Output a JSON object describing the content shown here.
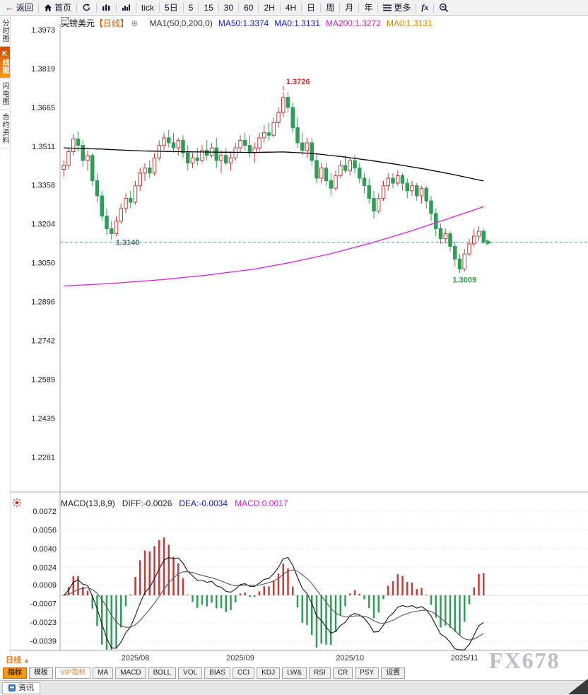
{
  "toolbar": {
    "items": [
      "返回",
      "首页",
      "tick",
      "5日",
      "5",
      "15",
      "30",
      "60",
      "2H",
      "4H",
      "日",
      "周",
      "月",
      "年",
      "更多",
      "fx"
    ]
  },
  "sidebar": {
    "items": [
      {
        "label": "分时图",
        "selected": false
      },
      {
        "label": "K线图",
        "selected": true
      },
      {
        "label": "闪电图",
        "selected": false
      },
      {
        "label": "合约资料",
        "selected": false
      }
    ]
  },
  "chart_header": {
    "symbol": "英镑美元",
    "period": "【日线】",
    "plus": "⊕",
    "ma_settings": "MA1(50,0,200,0)",
    "ma50": "MA50:1.3374",
    "ma0_a": "MA0:1.3131",
    "ma200": "MA200:1.3272",
    "ma0_b": "MA0:1.3131"
  },
  "macd_header": {
    "title": "MACD(13,8,9)",
    "diff": "DIFF:-0.0026",
    "dea": "DEA:-0.0034",
    "macd": "MACD:0.0017"
  },
  "bottom": {
    "timeframe_label": "日线",
    "timeframe_arrow": "▲",
    "tabs": [
      {
        "label": "指标",
        "variant": "selected"
      },
      {
        "label": "模板",
        "variant": "normal"
      },
      {
        "label": "VIP指标",
        "variant": "vip"
      },
      {
        "label": "MA",
        "variant": "normal"
      },
      {
        "label": "MACD",
        "variant": "normal"
      },
      {
        "label": "BOLL",
        "variant": "normal"
      },
      {
        "label": "VOL",
        "variant": "normal"
      },
      {
        "label": "BIAS",
        "variant": "normal"
      },
      {
        "label": "CCI",
        "variant": "normal"
      },
      {
        "label": "KDJ",
        "variant": "normal"
      },
      {
        "label": "LW&",
        "variant": "normal"
      },
      {
        "label": "RSI",
        "variant": "normal"
      },
      {
        "label": "CR",
        "variant": "normal"
      },
      {
        "label": "PSY",
        "variant": "normal"
      },
      {
        "label": "设置",
        "variant": "normal"
      }
    ]
  },
  "statusbar": {
    "news_label": "资讯"
  },
  "watermark": "FX678",
  "colors": {
    "up": "#c23c3c",
    "down": "#2e9e57",
    "ma50": "#000000",
    "ma200": "#e020e0",
    "current_price_line": "#2aa7a7",
    "annotation_high": "#d03030",
    "annotation_low_aug": "#4a6a7a",
    "annotation_low_nov": "#2ca04a"
  },
  "chart_data": {
    "type": "candlestick",
    "title": "英镑美元 GBP/USD 日线",
    "indicator": "MACD(13,8,9)",
    "y_axis_ticks": [
      1.3973,
      1.3819,
      1.3665,
      1.3511,
      1.3358,
      1.3204,
      1.305,
      1.2896,
      1.2742,
      1.2589,
      1.2435,
      1.2281
    ],
    "x_axis": [
      {
        "index": 15,
        "label": "2025/08"
      },
      {
        "index": 37,
        "label": "2025/09"
      },
      {
        "index": 60,
        "label": "2025/10"
      },
      {
        "index": 84,
        "label": "2025/11"
      }
    ],
    "last_price": 1.3131,
    "annotations": {
      "peak": {
        "index": 46,
        "price": 1.3726,
        "label": "1.3726"
      },
      "low_aug": {
        "index": 10,
        "price": 1.314,
        "label": "1.3140"
      },
      "low_nov": {
        "index": 83,
        "price": 1.3009,
        "label": "1.3009"
      }
    },
    "candles": [
      [
        1.342,
        1.3455,
        1.339,
        1.3435
      ],
      [
        1.3435,
        1.3505,
        1.342,
        1.349
      ],
      [
        1.349,
        1.356,
        1.3475,
        1.354
      ],
      [
        1.354,
        1.357,
        1.349,
        1.3515
      ],
      [
        1.3515,
        1.3535,
        1.343,
        1.3455
      ],
      [
        1.3455,
        1.3495,
        1.3415,
        1.3475
      ],
      [
        1.3475,
        1.3485,
        1.3355,
        1.3375
      ],
      [
        1.3375,
        1.3405,
        1.329,
        1.3315
      ],
      [
        1.3315,
        1.3335,
        1.3215,
        1.3235
      ],
      [
        1.3235,
        1.3265,
        1.316,
        1.3185
      ],
      [
        1.3185,
        1.3215,
        1.314,
        1.3165
      ],
      [
        1.3165,
        1.3235,
        1.3155,
        1.3215
      ],
      [
        1.3215,
        1.3285,
        1.3205,
        1.3265
      ],
      [
        1.3265,
        1.3325,
        1.3245,
        1.3305
      ],
      [
        1.3305,
        1.3335,
        1.3265,
        1.329
      ],
      [
        1.329,
        1.3375,
        1.328,
        1.3355
      ],
      [
        1.3355,
        1.3425,
        1.3335,
        1.3405
      ],
      [
        1.3405,
        1.3445,
        1.3375,
        1.3425
      ],
      [
        1.3425,
        1.3455,
        1.3385,
        1.3405
      ],
      [
        1.3405,
        1.3485,
        1.3395,
        1.3465
      ],
      [
        1.3465,
        1.3535,
        1.3455,
        1.3515
      ],
      [
        1.3515,
        1.3565,
        1.3495,
        1.3545
      ],
      [
        1.3545,
        1.3575,
        1.3505,
        1.3525
      ],
      [
        1.3525,
        1.3565,
        1.3485,
        1.3505
      ],
      [
        1.3505,
        1.3545,
        1.3475,
        1.3535
      ],
      [
        1.3535,
        1.3555,
        1.3465,
        1.3485
      ],
      [
        1.3485,
        1.3515,
        1.3415,
        1.3445
      ],
      [
        1.3445,
        1.3485,
        1.3425,
        1.3465
      ],
      [
        1.3465,
        1.3505,
        1.3435,
        1.3455
      ],
      [
        1.3455,
        1.3515,
        1.3445,
        1.3495
      ],
      [
        1.3495,
        1.3535,
        1.3455,
        1.3475
      ],
      [
        1.3475,
        1.3525,
        1.3465,
        1.3505
      ],
      [
        1.3505,
        1.3545,
        1.3425,
        1.3455
      ],
      [
        1.3455,
        1.3495,
        1.3405,
        1.3475
      ],
      [
        1.3475,
        1.3505,
        1.3435,
        1.3445
      ],
      [
        1.3445,
        1.3485,
        1.3415,
        1.3465
      ],
      [
        1.3465,
        1.3525,
        1.3455,
        1.3505
      ],
      [
        1.3505,
        1.3555,
        1.3485,
        1.3535
      ],
      [
        1.3535,
        1.3565,
        1.3495,
        1.3515
      ],
      [
        1.3515,
        1.3555,
        1.3465,
        1.3485
      ],
      [
        1.3485,
        1.3525,
        1.3445,
        1.3505
      ],
      [
        1.3505,
        1.3565,
        1.3485,
        1.3545
      ],
      [
        1.3545,
        1.3595,
        1.3525,
        1.3565
      ],
      [
        1.3565,
        1.3605,
        1.3535,
        1.3555
      ],
      [
        1.3555,
        1.3625,
        1.3545,
        1.3605
      ],
      [
        1.3605,
        1.3665,
        1.3585,
        1.3645
      ],
      [
        1.3645,
        1.3726,
        1.3625,
        1.3705
      ],
      [
        1.3705,
        1.3725,
        1.3645,
        1.3665
      ],
      [
        1.3665,
        1.3685,
        1.3565,
        1.3585
      ],
      [
        1.3585,
        1.3625,
        1.3505,
        1.3525
      ],
      [
        1.3525,
        1.3565,
        1.3475,
        1.3495
      ],
      [
        1.3495,
        1.3545,
        1.3465,
        1.3525
      ],
      [
        1.3525,
        1.3545,
        1.3435,
        1.3455
      ],
      [
        1.3455,
        1.3485,
        1.3365,
        1.3385
      ],
      [
        1.3385,
        1.3445,
        1.3365,
        1.3425
      ],
      [
        1.3425,
        1.3445,
        1.3355,
        1.3375
      ],
      [
        1.3375,
        1.3405,
        1.3315,
        1.3345
      ],
      [
        1.3345,
        1.3415,
        1.3335,
        1.3395
      ],
      [
        1.3395,
        1.3455,
        1.3385,
        1.3435
      ],
      [
        1.3435,
        1.3475,
        1.3405,
        1.3415
      ],
      [
        1.3415,
        1.3465,
        1.3395,
        1.3455
      ],
      [
        1.3455,
        1.3475,
        1.3405,
        1.3425
      ],
      [
        1.3425,
        1.3445,
        1.3365,
        1.3385
      ],
      [
        1.3385,
        1.3405,
        1.3325,
        1.3355
      ],
      [
        1.3355,
        1.3385,
        1.3285,
        1.3305
      ],
      [
        1.3305,
        1.3335,
        1.3225,
        1.3255
      ],
      [
        1.3255,
        1.3325,
        1.3245,
        1.3305
      ],
      [
        1.3305,
        1.3375,
        1.3295,
        1.3355
      ],
      [
        1.3355,
        1.3405,
        1.3335,
        1.3385
      ],
      [
        1.3385,
        1.3405,
        1.3345,
        1.3365
      ],
      [
        1.3365,
        1.3415,
        1.3355,
        1.3395
      ],
      [
        1.3395,
        1.3405,
        1.3335,
        1.3365
      ],
      [
        1.3365,
        1.3385,
        1.3305,
        1.3335
      ],
      [
        1.3335,
        1.3375,
        1.3315,
        1.3355
      ],
      [
        1.3355,
        1.3365,
        1.3295,
        1.3315
      ],
      [
        1.3315,
        1.3355,
        1.3285,
        1.3345
      ],
      [
        1.3345,
        1.3355,
        1.3265,
        1.3295
      ],
      [
        1.3295,
        1.3315,
        1.3215,
        1.3245
      ],
      [
        1.3245,
        1.3265,
        1.3155,
        1.3185
      ],
      [
        1.3185,
        1.3205,
        1.3125,
        1.3145
      ],
      [
        1.3145,
        1.3185,
        1.3125,
        1.3165
      ],
      [
        1.3165,
        1.3175,
        1.3095,
        1.3115
      ],
      [
        1.3115,
        1.3135,
        1.3035,
        1.3065
      ],
      [
        1.3065,
        1.3085,
        1.3009,
        1.3025
      ],
      [
        1.3025,
        1.3105,
        1.3015,
        1.3085
      ],
      [
        1.3085,
        1.3145,
        1.3075,
        1.3125
      ],
      [
        1.3125,
        1.3185,
        1.3115,
        1.3155
      ],
      [
        1.3155,
        1.3195,
        1.3135,
        1.3175
      ],
      [
        1.3175,
        1.3185,
        1.3125,
        1.3131
      ]
    ],
    "ma50_anchors": [
      [
        0,
        1.3505
      ],
      [
        8,
        1.35
      ],
      [
        16,
        1.3493
      ],
      [
        24,
        1.349
      ],
      [
        32,
        1.3488
      ],
      [
        40,
        1.3487
      ],
      [
        46,
        1.3489
      ],
      [
        52,
        1.3483
      ],
      [
        58,
        1.3471
      ],
      [
        64,
        1.3456
      ],
      [
        70,
        1.3439
      ],
      [
        76,
        1.342
      ],
      [
        82,
        1.3398
      ],
      [
        88,
        1.3374
      ]
    ],
    "ma200_anchors": [
      [
        0,
        1.2958
      ],
      [
        10,
        1.2968
      ],
      [
        20,
        1.2982
      ],
      [
        30,
        1.3001
      ],
      [
        40,
        1.3025
      ],
      [
        48,
        1.3053
      ],
      [
        56,
        1.3086
      ],
      [
        64,
        1.3126
      ],
      [
        72,
        1.3171
      ],
      [
        80,
        1.3221
      ],
      [
        88,
        1.3272
      ]
    ],
    "macd": {
      "params": [
        13,
        8,
        9
      ],
      "diff_last": -0.0026,
      "dea_last": -0.0034,
      "macd_last": 0.0017,
      "y_ticks": [
        0.0072,
        0.0056,
        0.004,
        0.0024,
        0.0009,
        -0.0007,
        -0.0023,
        -0.0039
      ],
      "ylim": [
        -0.0047,
        0.0087
      ]
    }
  }
}
